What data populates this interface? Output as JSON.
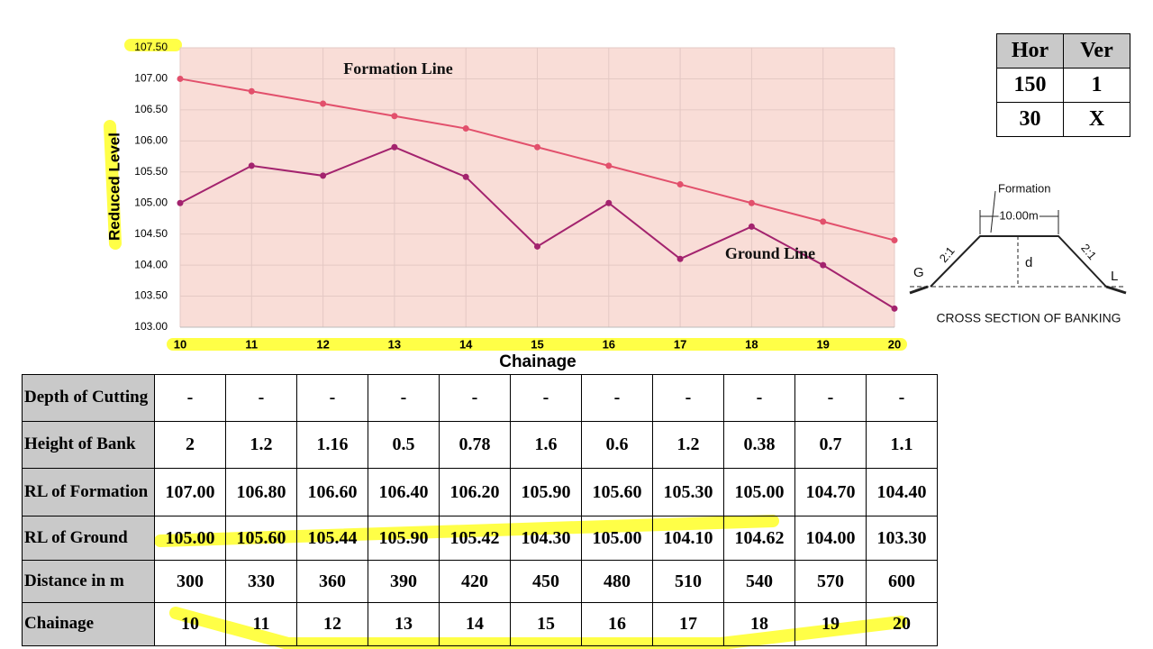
{
  "chart_data": {
    "type": "line",
    "y_label": "Reduced Level",
    "x_label": "Chainage",
    "x": [
      10,
      11,
      12,
      13,
      14,
      15,
      16,
      17,
      18,
      19,
      20
    ],
    "xlim": [
      10,
      20
    ],
    "xticks": [
      10,
      11,
      12,
      13,
      14,
      15,
      16,
      17,
      18,
      19,
      20
    ],
    "ylim": [
      103,
      107.5
    ],
    "yticks": [
      {
        "value": 103,
        "label": "103.00"
      },
      {
        "value": 103.5,
        "label": "103.50"
      },
      {
        "value": 104,
        "label": "104.00"
      },
      {
        "value": 104.5,
        "label": "104.50"
      },
      {
        "value": 105,
        "label": "105.00"
      },
      {
        "value": 105.5,
        "label": "105.50"
      },
      {
        "value": 106,
        "label": "106.00"
      },
      {
        "value": 106.5,
        "label": "106.50"
      },
      {
        "value": 107,
        "label": "107.00"
      },
      {
        "value": 107.5,
        "label": "107.50"
      }
    ],
    "grid": true,
    "series": [
      {
        "name": "Formation Line",
        "color": "#e2506c",
        "values": [
          107,
          106.8,
          106.6,
          106.4,
          106.2,
          105.9,
          105.6,
          105.3,
          105,
          104.7,
          104.4
        ]
      },
      {
        "name": "Ground Line",
        "color": "#a3236e",
        "values": [
          105,
          105.6,
          105.44,
          105.9,
          105.42,
          104.3,
          105,
          104.1,
          104.62,
          104,
          103.3
        ]
      }
    ]
  },
  "table": {
    "rows": [
      [
        "Depth of Cutting",
        "-",
        "-",
        "-",
        "-",
        "-",
        "-",
        "-",
        "-",
        "-",
        "-",
        "-"
      ],
      [
        "Height of Bank",
        "2",
        "1.2",
        "1.16",
        "0.5",
        "0.78",
        "1.6",
        "0.6",
        "1.2",
        "0.38",
        "0.7",
        "1.1"
      ],
      [
        "RL of Formation",
        "107.00",
        "106.80",
        "106.60",
        "106.40",
        "106.20",
        "105.90",
        "105.60",
        "105.30",
        "105.00",
        "104.70",
        "104.40"
      ],
      [
        "RL of Ground",
        "105.00",
        "105.60",
        "105.44",
        "105.90",
        "105.42",
        "104.30",
        "105.00",
        "104.10",
        "104.62",
        "104.00",
        "103.30"
      ],
      [
        "Distance in m",
        "300",
        "330",
        "360",
        "390",
        "420",
        "450",
        "480",
        "510",
        "540",
        "570",
        "600"
      ],
      [
        "Chainage",
        "10",
        "11",
        "12",
        "13",
        "14",
        "15",
        "16",
        "17",
        "18",
        "19",
        "20"
      ]
    ]
  },
  "scale_table": {
    "header": [
      "Hor",
      "Ver"
    ],
    "rows": [
      [
        "150",
        "1"
      ],
      [
        "30",
        "X"
      ]
    ]
  },
  "diagram": {
    "formation": "Formation",
    "width": "10.00m",
    "slope_left": "2:1",
    "slope_right": "2:1",
    "depth": "d",
    "left_point": "G",
    "right_point": "L",
    "caption": "CROSS SECTION OF BANKING"
  }
}
